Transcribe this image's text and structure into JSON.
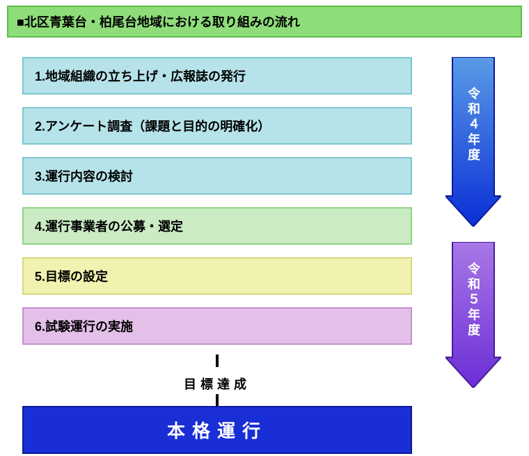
{
  "header": {
    "text": "■北区青葉台・柏尾台地域における取り組みの流れ",
    "bg": "#8fdd7a",
    "border": "#5bbf4a",
    "color": "#000000"
  },
  "steps": [
    {
      "label": "1.地域組織の立ち上げ・広報誌の発行",
      "bg": "#b6e3e9",
      "border": "#7cc6d0"
    },
    {
      "label": "2.アンケート調査（課題と目的の明確化）",
      "bg": "#b6e3e9",
      "border": "#7cc6d0"
    },
    {
      "label": "3.運行内容の検討",
      "bg": "#b6e3e9",
      "border": "#7cc6d0"
    },
    {
      "label": "4.運行事業者の公募・選定",
      "bg": "#caebc3",
      "border": "#8fd583"
    },
    {
      "label": "5.目標の設定",
      "bg": "#f2f2b0",
      "border": "#d8d87a"
    },
    {
      "label": "6.試験運行の実施",
      "bg": "#e3c0e8",
      "border": "#c58fd0"
    }
  ],
  "goal_label": "目標達成",
  "final": {
    "text": "本格運行",
    "bg": "#1a2ed6",
    "border": "#0a1a9a",
    "color": "#ffffff"
  },
  "side_arrows": [
    {
      "label": "令和４年度",
      "fill_top": "#5a9be6",
      "fill_bottom": "#0a2ed6",
      "stroke": "#0a1a9a",
      "shaft_w": 60,
      "total_w": 80,
      "total_h": 244,
      "head_h": 44
    },
    {
      "label": "令和５年度",
      "fill_top": "#a878e6",
      "fill_bottom": "#6a2ed6",
      "stroke": "#4a1a9a",
      "shaft_w": 60,
      "total_w": 80,
      "total_h": 210,
      "head_h": 44
    }
  ],
  "small_arrow_color": "#000000"
}
